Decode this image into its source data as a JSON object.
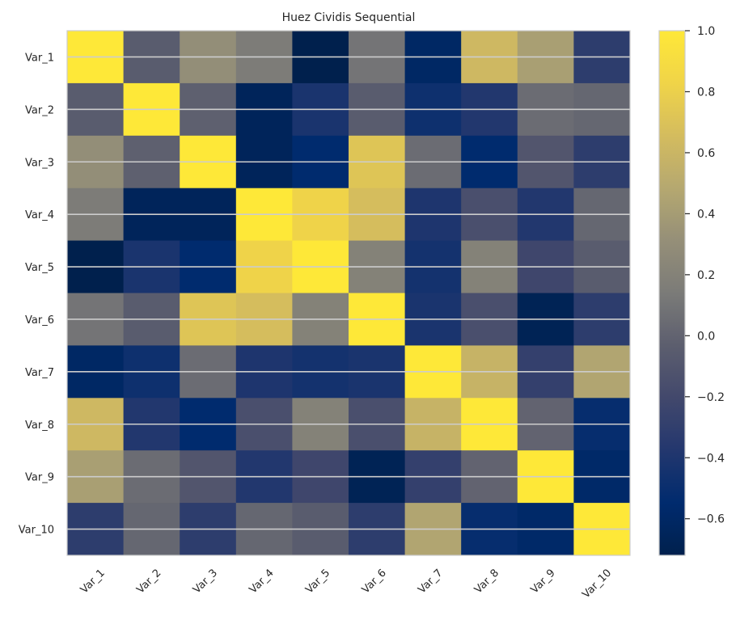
{
  "chart_data": {
    "type": "heatmap",
    "title": "Huez Cividis Sequential",
    "x_labels": [
      "Var_1",
      "Var_2",
      "Var_3",
      "Var_4",
      "Var_5",
      "Var_6",
      "Var_7",
      "Var_8",
      "Var_9",
      "Var_10"
    ],
    "y_labels": [
      "Var_1",
      "Var_2",
      "Var_3",
      "Var_4",
      "Var_5",
      "Var_6",
      "Var_7",
      "Var_8",
      "Var_9",
      "Var_10"
    ],
    "values": [
      [
        1.0,
        -0.05,
        0.3,
        0.15,
        -0.72,
        0.1,
        -0.6,
        0.62,
        0.42,
        -0.32
      ],
      [
        -0.05,
        1.0,
        -0.02,
        -0.65,
        -0.42,
        -0.05,
        -0.48,
        -0.38,
        0.05,
        0.02
      ],
      [
        0.3,
        -0.02,
        1.0,
        -0.65,
        -0.55,
        0.72,
        0.05,
        -0.55,
        -0.1,
        -0.32
      ],
      [
        0.15,
        -0.65,
        -0.65,
        1.0,
        0.82,
        0.66,
        -0.4,
        -0.15,
        -0.38,
        0.02
      ],
      [
        -0.72,
        -0.42,
        -0.55,
        0.82,
        1.0,
        0.2,
        -0.45,
        0.2,
        -0.22,
        -0.05
      ],
      [
        0.1,
        -0.05,
        0.72,
        0.66,
        0.2,
        1.0,
        -0.42,
        -0.15,
        -0.68,
        -0.32
      ],
      [
        -0.6,
        -0.48,
        0.05,
        -0.4,
        -0.45,
        -0.42,
        1.0,
        0.58,
        -0.28,
        0.46
      ],
      [
        0.62,
        -0.38,
        -0.55,
        -0.15,
        0.2,
        -0.15,
        0.58,
        1.0,
        0.0,
        -0.52
      ],
      [
        0.42,
        0.05,
        -0.1,
        -0.38,
        -0.22,
        -0.68,
        -0.28,
        0.0,
        1.0,
        -0.58
      ],
      [
        -0.32,
        0.02,
        -0.32,
        0.02,
        -0.05,
        -0.32,
        0.46,
        -0.52,
        -0.58,
        1.0
      ]
    ],
    "colorbar": {
      "min": -0.72,
      "max": 1.0,
      "ticks": [
        "1.0",
        "0.8",
        "0.6",
        "0.4",
        "0.2",
        "0.0",
        "−0.2",
        "−0.4",
        "−0.6"
      ],
      "tick_values": [
        1.0,
        0.8,
        0.6,
        0.4,
        0.2,
        0.0,
        -0.2,
        -0.4,
        -0.6
      ]
    },
    "colormap": "cividis",
    "grid": true,
    "grid_color": "#cccccc"
  }
}
